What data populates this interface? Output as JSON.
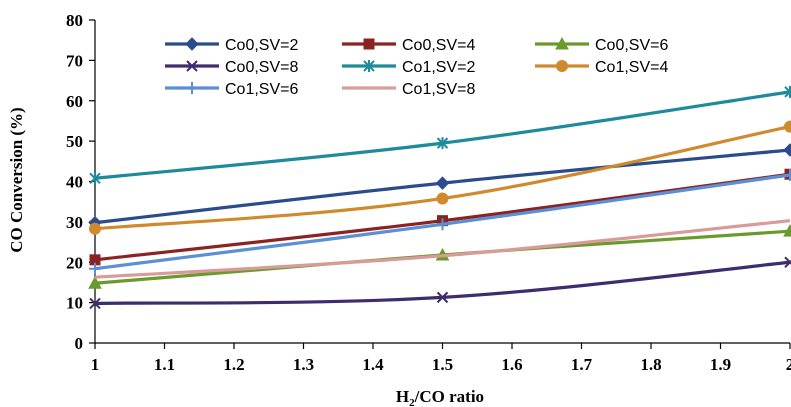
{
  "chart_data": {
    "type": "line",
    "title": "",
    "xlabel": "H2/CO ratio",
    "xlabel_main": "H",
    "xlabel_sub": "2",
    "xlabel_rest": "/CO ratio",
    "ylabel": "CO Conversion (%)",
    "xlim": [
      1,
      2
    ],
    "ylim": [
      0,
      80
    ],
    "x_ticks": [
      "1",
      "1.1",
      "1.2",
      "1.3",
      "1.4",
      "1.5",
      "1.6",
      "1.7",
      "1.8",
      "1.9",
      "2"
    ],
    "y_ticks": [
      "0",
      "10",
      "20",
      "30",
      "40",
      "50",
      "60",
      "70",
      "80"
    ],
    "x": [
      1,
      1.5,
      2
    ],
    "grid": false,
    "legend_position": "top",
    "series": [
      {
        "name": "Co0,SV=2",
        "values": [
          29.8,
          39.6,
          47.8
        ],
        "color": "#2b4c8c",
        "marker": "diamond"
      },
      {
        "name": "Co0,SV=4",
        "values": [
          20.6,
          30.3,
          41.8
        ],
        "color": "#8b2323",
        "marker": "square"
      },
      {
        "name": "Co0,SV=6",
        "values": [
          14.8,
          21.8,
          27.7
        ],
        "color": "#6a9a2c",
        "marker": "triangle"
      },
      {
        "name": "Co0,SV=8",
        "values": [
          9.8,
          11.3,
          20.0
        ],
        "color": "#3d2d6e",
        "marker": "x"
      },
      {
        "name": "Co1,SV=2",
        "values": [
          40.8,
          49.5,
          62.2
        ],
        "color": "#1f8a9c",
        "marker": "asterisk"
      },
      {
        "name": "Co1,SV=4",
        "values": [
          28.3,
          35.8,
          53.6
        ],
        "color": "#d08a2e",
        "marker": "circle"
      },
      {
        "name": "Co1,SV=6",
        "values": [
          18.4,
          29.4,
          41.6
        ],
        "color": "#5b8fd6",
        "marker": "plus"
      },
      {
        "name": "Co1,SV=8",
        "values": [
          16.3,
          21.6,
          30.3
        ],
        "color": "#d99a9a",
        "marker": "none"
      }
    ]
  }
}
